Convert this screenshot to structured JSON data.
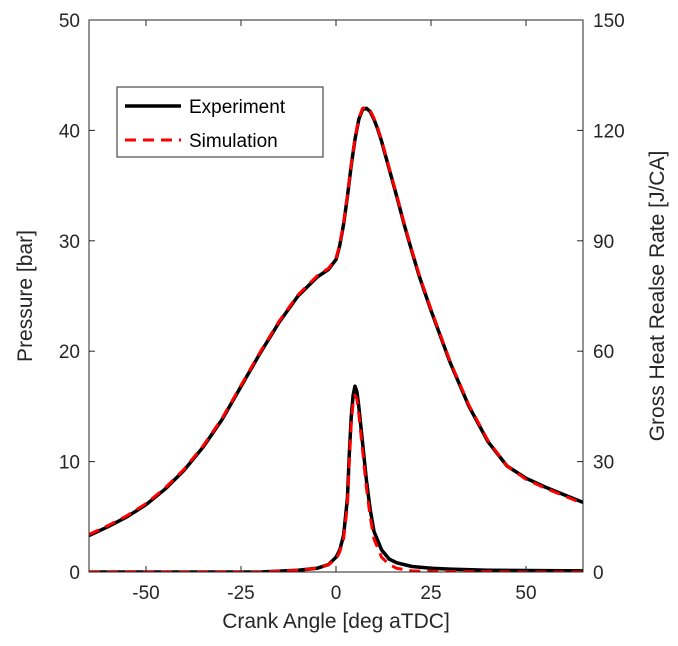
{
  "colors": {
    "experiment": "#000000",
    "simulation": "#ff0000",
    "axis": "#262626",
    "background": "#ffffff"
  },
  "chart_data": {
    "type": "line",
    "title": "",
    "xlabel": "Crank Angle [deg aTDC]",
    "ylabel": "Pressure [bar]",
    "y2label": "Gross Heat Realse Rate [J/CA]",
    "xlim": [
      -65,
      65
    ],
    "ylim": [
      0,
      50
    ],
    "y2lim": [
      0,
      150
    ],
    "xticks": [
      -50,
      -25,
      0,
      25,
      50
    ],
    "yticks": [
      0,
      10,
      20,
      30,
      40,
      50
    ],
    "y2ticks": [
      0,
      30,
      60,
      90,
      120,
      150
    ],
    "grid": false,
    "legend_position": "top-left",
    "legend": [
      "Experiment",
      "Simulation"
    ],
    "pressure": {
      "x": [
        -65,
        -60,
        -55,
        -50,
        -45,
        -40,
        -35,
        -30,
        -25,
        -20,
        -15,
        -10,
        -5,
        -2,
        0,
        1,
        2,
        3,
        4,
        5,
        6,
        7,
        8,
        9,
        10,
        11,
        12,
        14,
        16,
        18,
        20,
        22,
        25,
        30,
        35,
        40,
        45,
        50,
        55,
        60,
        65
      ],
      "series": [
        {
          "name": "Experiment",
          "axis": "left",
          "style": "solid",
          "values": [
            3.3,
            4.1,
            5.0,
            6.1,
            7.5,
            9.2,
            11.3,
            13.8,
            16.8,
            19.8,
            22.6,
            25.0,
            26.7,
            27.4,
            28.3,
            29.6,
            31.5,
            34.0,
            36.8,
            39.2,
            41.0,
            41.9,
            42.0,
            41.7,
            41.0,
            40.1,
            39.0,
            36.5,
            34.0,
            31.4,
            29.0,
            26.7,
            23.7,
            19.0,
            15.0,
            11.8,
            9.6,
            8.5,
            7.7,
            7.0,
            6.3
          ]
        },
        {
          "name": "Simulation",
          "axis": "left",
          "style": "dashed",
          "values": [
            3.4,
            4.2,
            5.1,
            6.2,
            7.6,
            9.3,
            11.4,
            13.9,
            16.9,
            19.9,
            22.7,
            25.1,
            26.8,
            27.5,
            28.4,
            29.7,
            31.6,
            34.1,
            36.9,
            39.3,
            41.1,
            42.0,
            42.1,
            41.8,
            41.1,
            40.2,
            39.1,
            36.6,
            34.1,
            31.5,
            29.1,
            26.8,
            23.8,
            19.1,
            15.1,
            11.9,
            9.6,
            8.4,
            7.6,
            6.9,
            6.2
          ]
        }
      ]
    },
    "heat_release": {
      "x": [
        -65,
        -20,
        -10,
        -5,
        -2,
        0,
        1,
        2,
        3,
        3.5,
        4,
        4.5,
        5,
        5.5,
        6,
        7,
        8,
        9,
        10,
        12,
        14,
        16,
        20,
        25,
        30,
        40,
        50,
        65
      ],
      "series": [
        {
          "name": "Experiment",
          "axis": "right",
          "style": "solid",
          "values": [
            0,
            0,
            0.5,
            1,
            2,
            4,
            6,
            10,
            20,
            32,
            42,
            48,
            50.5,
            49,
            45,
            35,
            25,
            17,
            11,
            6,
            3.5,
            2.5,
            1.5,
            1,
            0.8,
            0.5,
            0.4,
            0.3
          ]
        },
        {
          "name": "Simulation",
          "axis": "right",
          "style": "dashed",
          "values": [
            0,
            0,
            0.5,
            1,
            2,
            3.5,
            5.5,
            9,
            18,
            30,
            40,
            46,
            48,
            47,
            43,
            33,
            23,
            15,
            9,
            4,
            2,
            1,
            0.3,
            0.2,
            0.1,
            0.1,
            0,
            0
          ]
        }
      ]
    }
  }
}
